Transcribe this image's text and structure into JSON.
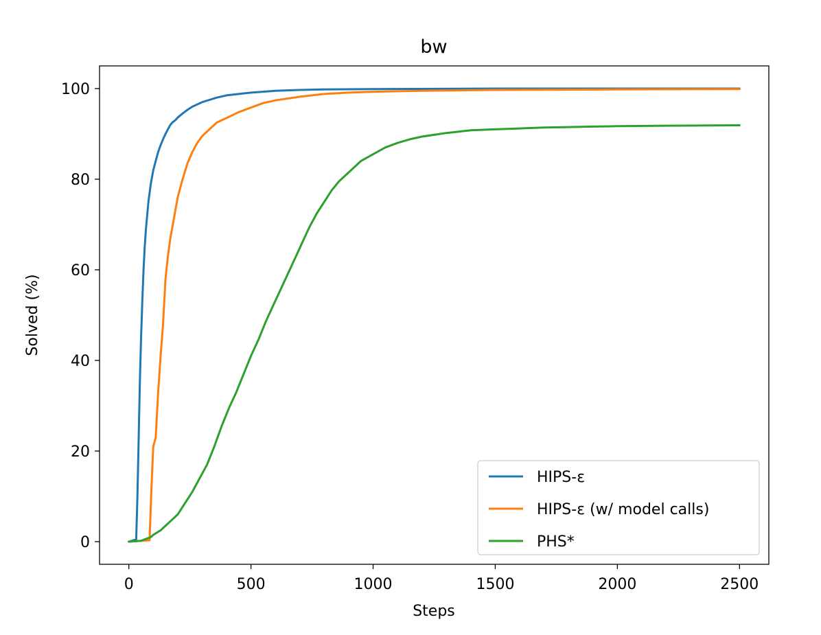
{
  "chart_data": {
    "type": "line",
    "title": "bw",
    "xlabel": "Steps",
    "ylabel": "Solved (%)",
    "xlim": [
      -120,
      2620
    ],
    "ylim": [
      -5,
      105
    ],
    "xticks": [
      0,
      500,
      1000,
      1500,
      2000,
      2500
    ],
    "yticks": [
      0,
      20,
      40,
      60,
      80,
      100
    ],
    "grid": false,
    "legend_position": "lower right",
    "series": [
      {
        "name": "HIPS-ε",
        "color": "#1f77b4",
        "x": [
          0,
          30,
          35,
          40,
          45,
          50,
          55,
          60,
          65,
          70,
          75,
          80,
          90,
          100,
          110,
          120,
          130,
          140,
          150,
          160,
          170,
          180,
          190,
          200,
          220,
          240,
          260,
          280,
          300,
          330,
          360,
          400,
          450,
          500,
          550,
          600,
          700,
          800,
          1000,
          1500,
          2000,
          2500
        ],
        "y": [
          0,
          0.5,
          10,
          22,
          35,
          45,
          53,
          60,
          65,
          69,
          72,
          75,
          79,
          82,
          84,
          86,
          87.5,
          88.8,
          90,
          91,
          92,
          92.6,
          93,
          93.6,
          94.5,
          95.3,
          96,
          96.5,
          97,
          97.5,
          98,
          98.5,
          98.8,
          99.1,
          99.3,
          99.5,
          99.7,
          99.8,
          99.9,
          100,
          100,
          100
        ]
      },
      {
        "name": "HIPS-ε (w/ model calls)",
        "color": "#ff7f0e",
        "x": [
          0,
          85,
          90,
          95,
          100,
          110,
          120,
          130,
          140,
          150,
          160,
          170,
          180,
          190,
          200,
          220,
          240,
          260,
          280,
          300,
          330,
          360,
          400,
          450,
          500,
          550,
          600,
          700,
          800,
          900,
          1000,
          1200,
          1500,
          2000,
          2500
        ],
        "y": [
          0,
          0.3,
          8,
          15,
          21,
          23,
          33,
          41,
          48,
          58,
          63,
          67,
          70,
          73,
          76,
          80,
          83.5,
          86,
          88,
          89.5,
          91,
          92.5,
          93.5,
          94.8,
          95.8,
          96.8,
          97.4,
          98.2,
          98.8,
          99.1,
          99.3,
          99.5,
          99.7,
          99.8,
          99.9
        ]
      },
      {
        "name": "PHS*",
        "color": "#2ca02c",
        "x": [
          0,
          50,
          90,
          100,
          130,
          150,
          170,
          200,
          230,
          260,
          290,
          320,
          350,
          380,
          410,
          440,
          470,
          500,
          530,
          560,
          590,
          620,
          650,
          680,
          710,
          740,
          770,
          800,
          830,
          860,
          890,
          920,
          950,
          1000,
          1050,
          1100,
          1150,
          1200,
          1300,
          1400,
          1500,
          1600,
          1700,
          1800,
          1900,
          2000,
          2200,
          2500
        ],
        "y": [
          0,
          0.2,
          1,
          1.5,
          2.5,
          3.5,
          4.5,
          6,
          8.5,
          11,
          14,
          17,
          21,
          25.5,
          29.5,
          33,
          37,
          41,
          44.5,
          48.5,
          52,
          55.5,
          59,
          62.5,
          66,
          69.5,
          72.5,
          75,
          77.5,
          79.5,
          81,
          82.5,
          84,
          85.5,
          87,
          88,
          88.8,
          89.4,
          90.2,
          90.8,
          91,
          91.2,
          91.4,
          91.5,
          91.6,
          91.7,
          91.8,
          91.9
        ]
      }
    ]
  }
}
